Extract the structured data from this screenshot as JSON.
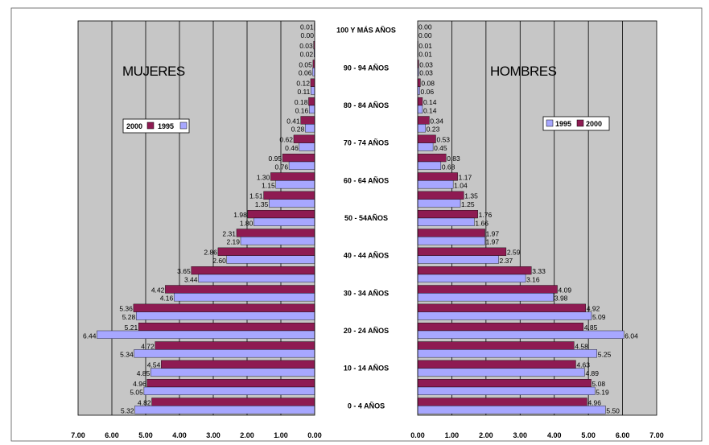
{
  "chart_data": [
    {
      "type": "bar",
      "orientation": "horizontal",
      "title": "MUJERES",
      "x_direction": "reversed",
      "xlim": [
        0,
        7
      ],
      "x_ticks": [
        "7.00",
        "6.00",
        "5.00",
        "4.00",
        "3.00",
        "2.00",
        "1.00",
        "0.00"
      ],
      "categories": [
        "0 - 4 AÑOS",
        "",
        "10 - 14 AÑOS",
        "",
        "20 - 24 AÑOS",
        "",
        "30 - 34 AÑOS",
        "",
        "40 - 44 AÑOS",
        "",
        "50 - 54AÑOS",
        "",
        "60 - 64 AÑOS",
        "",
        "70 - 74 AÑOS",
        "",
        "80 - 84 AÑOS",
        "",
        "90 - 94 AÑOS",
        "",
        "100 Y MÁS AÑOS"
      ],
      "series": [
        {
          "name": "2000",
          "values": [
            4.82,
            4.96,
            4.54,
            4.72,
            5.21,
            5.36,
            4.42,
            3.65,
            2.86,
            2.31,
            1.98,
            1.51,
            1.3,
            0.95,
            0.62,
            0.41,
            0.18,
            0.12,
            0.05,
            0.03,
            0.01
          ]
        },
        {
          "name": "1995",
          "values": [
            5.32,
            5.05,
            4.85,
            5.34,
            6.44,
            5.28,
            4.16,
            3.44,
            2.6,
            2.19,
            1.8,
            1.35,
            1.15,
            0.76,
            0.46,
            0.28,
            0.16,
            0.11,
            0.06,
            0.02,
            0.0
          ]
        }
      ],
      "labels_2000": [
        "4.82",
        "4.96",
        "4.54",
        "4.72",
        "5.21",
        "5.36",
        "4.42",
        "3.65",
        "2.86",
        "2.31",
        "1.98",
        "1.51",
        "1.30",
        "0.95",
        "0.62",
        "0.41",
        "0.18",
        "0.12",
        "0.05",
        "0.03",
        "0.01"
      ],
      "labels_1995": [
        "5.32",
        "5.05",
        "4.85",
        "5.34",
        "6.44",
        "5.28",
        "4.16",
        "3.44",
        "2.60",
        "2.19",
        "1.80",
        "1.35",
        "1.15",
        "0.76",
        "0.46",
        "0.28",
        "0.16",
        "0.11",
        "0.06",
        "0.02",
        "0.00"
      ],
      "legend": {
        "placement": "upper-left",
        "entries": [
          "2000",
          "1995"
        ]
      },
      "grid": true
    },
    {
      "type": "bar",
      "orientation": "horizontal",
      "title": "HOMBRES",
      "x_direction": "normal",
      "xlim": [
        0,
        7
      ],
      "x_ticks": [
        "0.00",
        "1.00",
        "2.00",
        "3.00",
        "4.00",
        "5.00",
        "6.00",
        "7.00"
      ],
      "categories": [
        "0 - 4 AÑOS",
        "",
        "10 - 14 AÑOS",
        "",
        "20 - 24 AÑOS",
        "",
        "30 - 34 AÑOS",
        "",
        "40 - 44 AÑOS",
        "",
        "50 - 54AÑOS",
        "",
        "60 - 64 AÑOS",
        "",
        "70 - 74 AÑOS",
        "",
        "80 - 84 AÑOS",
        "",
        "90 - 94 AÑOS",
        "",
        "100 Y MÁS AÑOS"
      ],
      "series": [
        {
          "name": "1995",
          "values": [
            5.5,
            5.19,
            4.89,
            5.25,
            6.04,
            5.09,
            3.98,
            3.16,
            2.37,
            1.97,
            1.66,
            1.25,
            1.04,
            0.68,
            0.45,
            0.23,
            0.14,
            0.06,
            0.03,
            0.01,
            0.0
          ]
        },
        {
          "name": "2000",
          "values": [
            4.96,
            5.08,
            4.63,
            4.58,
            4.85,
            4.92,
            4.09,
            3.33,
            2.59,
            1.97,
            1.76,
            1.35,
            1.17,
            0.83,
            0.53,
            0.34,
            0.14,
            0.08,
            0.03,
            0.01,
            0.0
          ]
        }
      ],
      "labels_1995": [
        "5.50",
        "5.19",
        "4.89",
        "5.25",
        "6.04",
        "5.09",
        "3.98",
        "3.16",
        "2.37",
        "1.97",
        "1.66",
        "1.25",
        "1.04",
        "0.68",
        "0.45",
        "0.23",
        "0.14",
        "0.06",
        "0.03",
        "0.01",
        "0.00"
      ],
      "labels_2000": [
        "4.96",
        "5.08",
        "4.63",
        "4.58",
        "4.85",
        "4.92",
        "4.09",
        "3.33",
        "2.59",
        "1.97",
        "1.76",
        "1.35",
        "1.17",
        "0.83",
        "0.53",
        "0.34",
        "0.14",
        "0.08",
        "0.03",
        "0.01",
        "0.00"
      ],
      "legend": {
        "placement": "upper-right",
        "entries": [
          "1995",
          "2000"
        ]
      },
      "grid": true
    }
  ],
  "colors": {
    "series_2000": "#8e1b52",
    "series_1995": "#a7a7ff",
    "plot_bg": "#c6c6c6",
    "gridline": "#000000"
  }
}
